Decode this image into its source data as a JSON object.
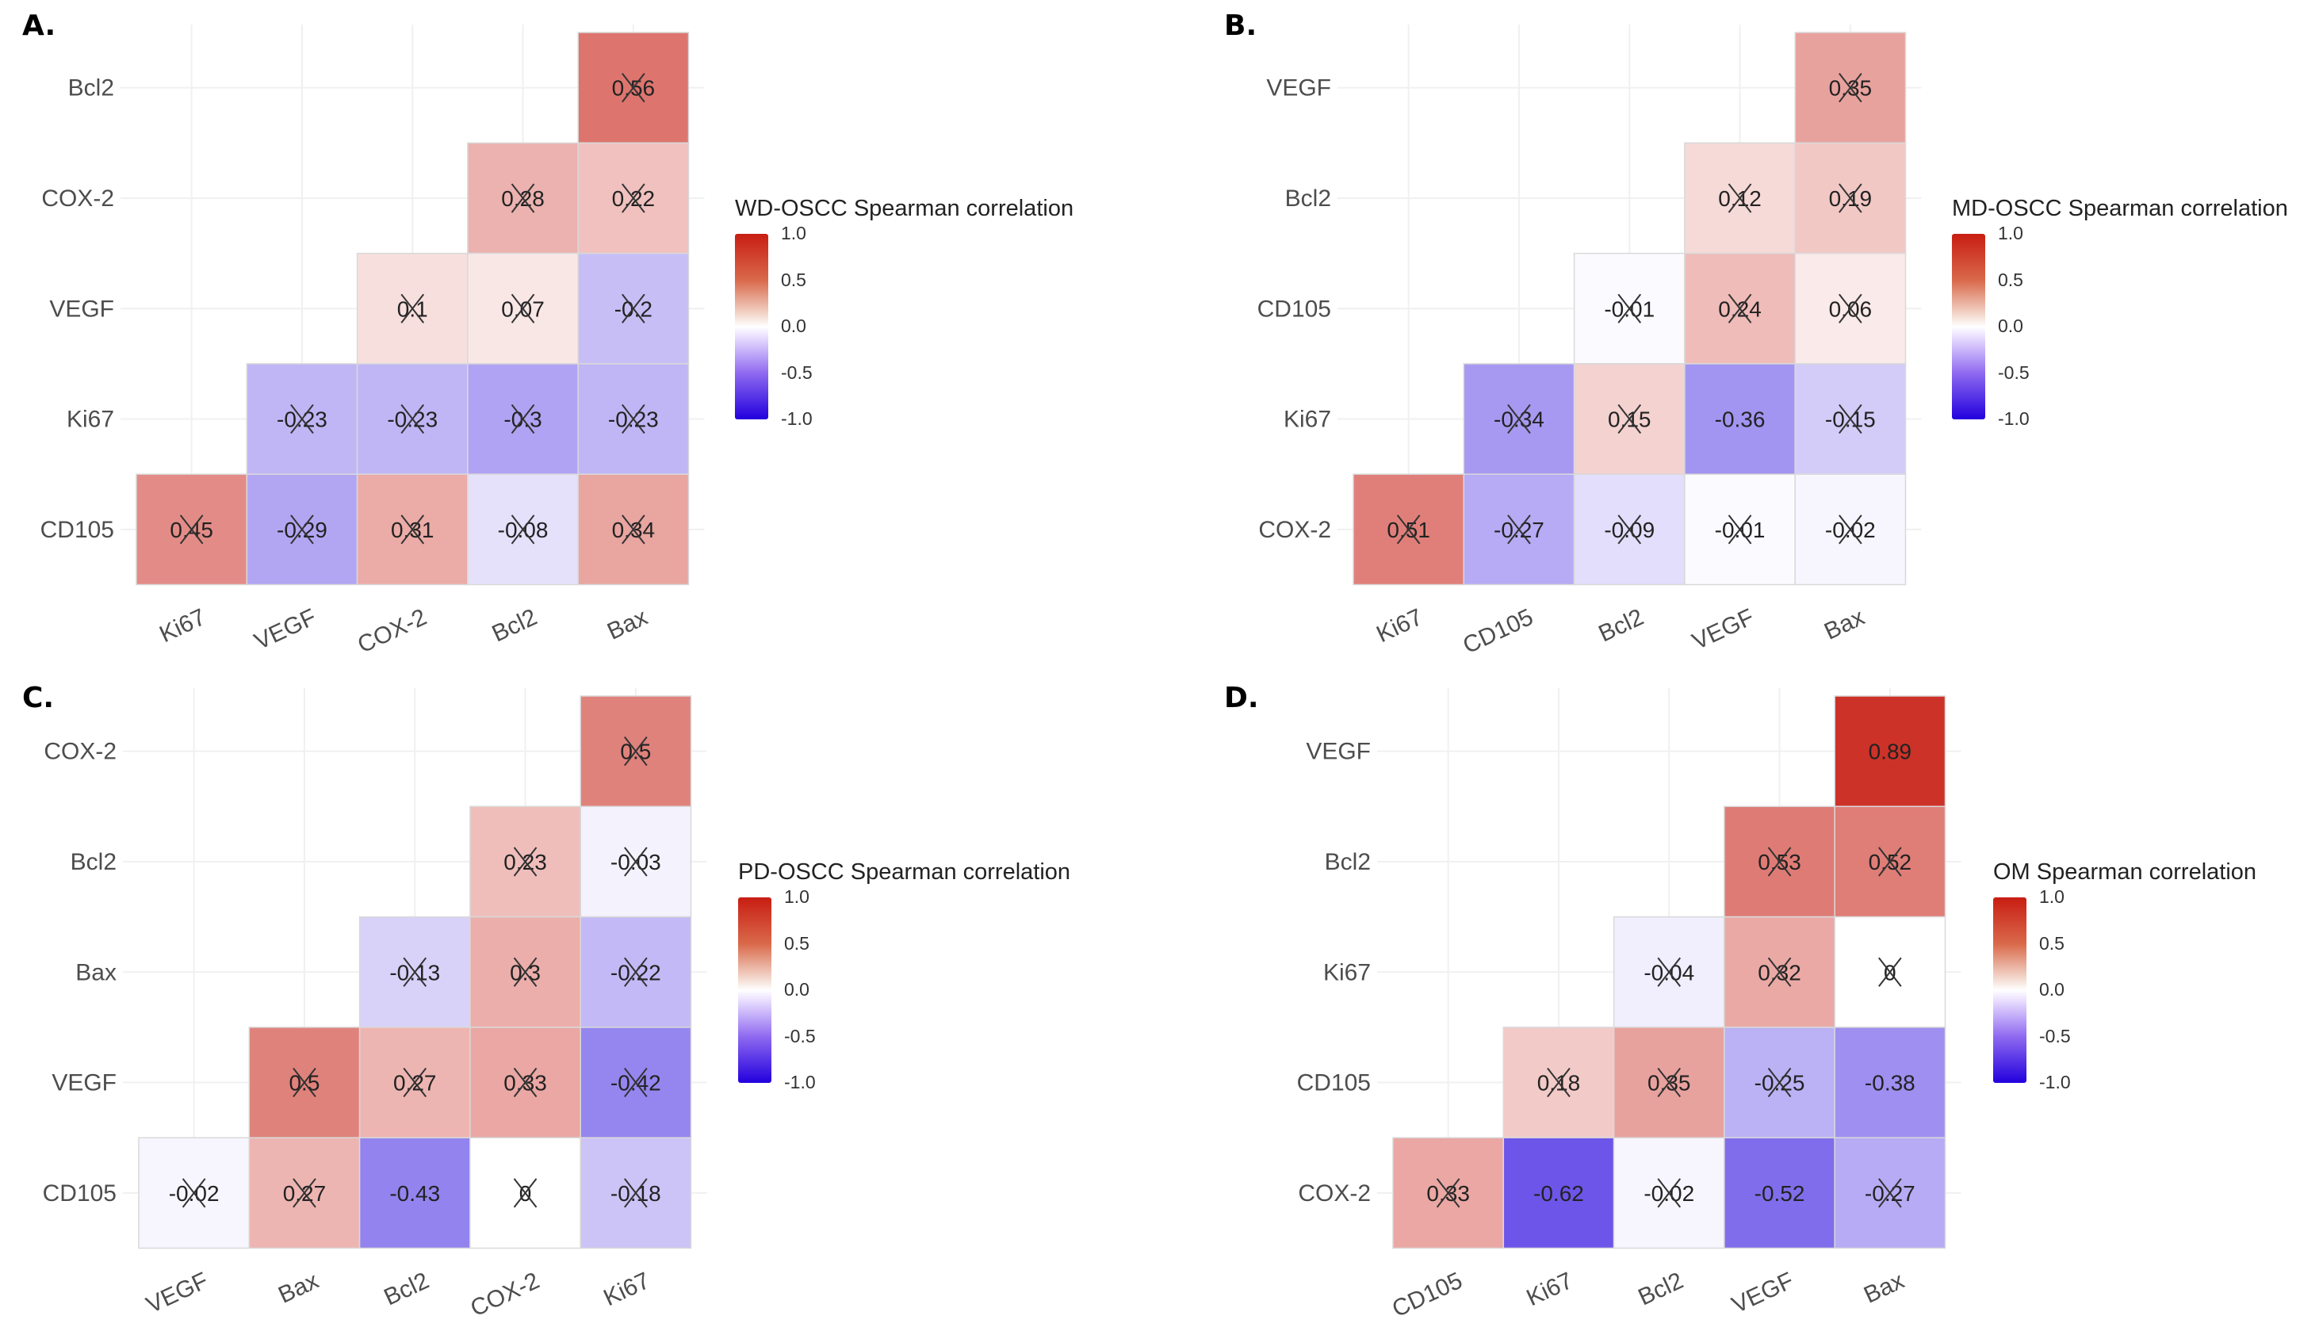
{
  "chart_data": [
    {
      "type": "heatmap",
      "panel": "A.",
      "title": "WD-OSCC Spearman correlation",
      "rows": [
        "Bcl2",
        "COX-2",
        "VEGF",
        "Ki67",
        "CD105"
      ],
      "columns": [
        "Ki67",
        "VEGF",
        "COX-2",
        "Bcl2",
        "Bax"
      ],
      "cells": [
        {
          "row": "Bcl2",
          "col": "Bax",
          "value": 0.56,
          "label": "0.56",
          "crossed": true
        },
        {
          "row": "COX-2",
          "col": "Bcl2",
          "value": 0.28,
          "label": "0.28",
          "crossed": true
        },
        {
          "row": "COX-2",
          "col": "Bax",
          "value": 0.22,
          "label": "0.22",
          "crossed": true
        },
        {
          "row": "VEGF",
          "col": "COX-2",
          "value": 0.1,
          "label": "0.1",
          "crossed": true
        },
        {
          "row": "VEGF",
          "col": "Bcl2",
          "value": 0.07,
          "label": "0.07",
          "crossed": true
        },
        {
          "row": "VEGF",
          "col": "Bax",
          "value": -0.2,
          "label": "-0.2",
          "crossed": true
        },
        {
          "row": "Ki67",
          "col": "VEGF",
          "value": -0.23,
          "label": "-0.23",
          "crossed": true
        },
        {
          "row": "Ki67",
          "col": "COX-2",
          "value": -0.23,
          "label": "-0.23",
          "crossed": true
        },
        {
          "row": "Ki67",
          "col": "Bcl2",
          "value": -0.3,
          "label": "-0.3",
          "crossed": true
        },
        {
          "row": "Ki67",
          "col": "Bax",
          "value": -0.23,
          "label": "-0.23",
          "crossed": true
        },
        {
          "row": "CD105",
          "col": "Ki67",
          "value": 0.45,
          "label": "0.45",
          "crossed": true
        },
        {
          "row": "CD105",
          "col": "VEGF",
          "value": -0.29,
          "label": "-0.29",
          "crossed": true
        },
        {
          "row": "CD105",
          "col": "COX-2",
          "value": 0.31,
          "label": "0.31",
          "crossed": true
        },
        {
          "row": "CD105",
          "col": "Bcl2",
          "value": -0.08,
          "label": "-0.08",
          "crossed": true
        },
        {
          "row": "CD105",
          "col": "Bax",
          "value": 0.34,
          "label": "0.34",
          "crossed": true
        }
      ],
      "legend": {
        "ticks": [
          "1.0",
          "0.5",
          "0.0",
          "-0.5",
          "-1.0"
        ],
        "range": [
          -1,
          1
        ],
        "placement": "right"
      },
      "colors": {
        "low": "#2200dd",
        "mid": "#ffffff",
        "high": "#c81d12"
      }
    },
    {
      "type": "heatmap",
      "panel": "B.",
      "title": "MD-OSCC Spearman correlation",
      "rows": [
        "VEGF",
        "Bcl2",
        "CD105",
        "Ki67",
        "COX-2"
      ],
      "columns": [
        "Ki67",
        "CD105",
        "Bcl2",
        "VEGF",
        "Bax"
      ],
      "cells": [
        {
          "row": "VEGF",
          "col": "Bax",
          "value": 0.35,
          "label": "0.35",
          "crossed": true
        },
        {
          "row": "Bcl2",
          "col": "VEGF",
          "value": 0.12,
          "label": "0.12",
          "crossed": true
        },
        {
          "row": "Bcl2",
          "col": "Bax",
          "value": 0.19,
          "label": "0.19",
          "crossed": true
        },
        {
          "row": "CD105",
          "col": "Bcl2",
          "value": -0.01,
          "label": "-0.01",
          "crossed": true
        },
        {
          "row": "CD105",
          "col": "VEGF",
          "value": 0.24,
          "label": "0.24",
          "crossed": true
        },
        {
          "row": "CD105",
          "col": "Bax",
          "value": 0.06,
          "label": "0.06",
          "crossed": true
        },
        {
          "row": "Ki67",
          "col": "CD105",
          "value": -0.34,
          "label": "-0.34",
          "crossed": true
        },
        {
          "row": "Ki67",
          "col": "Bcl2",
          "value": 0.15,
          "label": "0.15",
          "crossed": true
        },
        {
          "row": "Ki67",
          "col": "VEGF",
          "value": -0.36,
          "label": "-0.36",
          "crossed": false
        },
        {
          "row": "Ki67",
          "col": "Bax",
          "value": -0.15,
          "label": "-0.15",
          "crossed": true
        },
        {
          "row": "COX-2",
          "col": "Ki67",
          "value": 0.51,
          "label": "0.51",
          "crossed": true
        },
        {
          "row": "COX-2",
          "col": "CD105",
          "value": -0.27,
          "label": "-0.27",
          "crossed": true
        },
        {
          "row": "COX-2",
          "col": "Bcl2",
          "value": -0.09,
          "label": "-0.09",
          "crossed": true
        },
        {
          "row": "COX-2",
          "col": "VEGF",
          "value": -0.01,
          "label": "-0.01",
          "crossed": true
        },
        {
          "row": "COX-2",
          "col": "Bax",
          "value": -0.02,
          "label": "-0.02",
          "crossed": true
        }
      ],
      "legend": {
        "ticks": [
          "1.0",
          "0.5",
          "0.0",
          "-0.5",
          "-1.0"
        ],
        "range": [
          -1,
          1
        ],
        "placement": "right"
      },
      "colors": {
        "low": "#2200dd",
        "mid": "#ffffff",
        "high": "#c81d12"
      }
    },
    {
      "type": "heatmap",
      "panel": "C.",
      "title": "PD-OSCC Spearman correlation",
      "rows": [
        "COX-2",
        "Bcl2",
        "Bax",
        "VEGF",
        "CD105"
      ],
      "columns": [
        "VEGF",
        "Bax",
        "Bcl2",
        "COX-2",
        "Ki67"
      ],
      "cells": [
        {
          "row": "COX-2",
          "col": "Ki67",
          "value": 0.5,
          "label": "0.5",
          "crossed": true
        },
        {
          "row": "Bcl2",
          "col": "COX-2",
          "value": 0.23,
          "label": "0.23",
          "crossed": true
        },
        {
          "row": "Bcl2",
          "col": "Ki67",
          "value": -0.03,
          "label": "-0.03",
          "crossed": true
        },
        {
          "row": "Bax",
          "col": "Bcl2",
          "value": -0.13,
          "label": "-0.13",
          "crossed": true
        },
        {
          "row": "Bax",
          "col": "COX-2",
          "value": 0.3,
          "label": "0.3",
          "crossed": true
        },
        {
          "row": "Bax",
          "col": "Ki67",
          "value": -0.22,
          "label": "-0.22",
          "crossed": true
        },
        {
          "row": "VEGF",
          "col": "Bax",
          "value": 0.5,
          "label": "0.5",
          "crossed": true
        },
        {
          "row": "VEGF",
          "col": "Bcl2",
          "value": 0.27,
          "label": "0.27",
          "crossed": true
        },
        {
          "row": "VEGF",
          "col": "COX-2",
          "value": 0.33,
          "label": "0.33",
          "crossed": true
        },
        {
          "row": "VEGF",
          "col": "Ki67",
          "value": -0.42,
          "label": "-0.42",
          "crossed": true
        },
        {
          "row": "CD105",
          "col": "VEGF",
          "value": -0.02,
          "label": "-0.02",
          "crossed": true
        },
        {
          "row": "CD105",
          "col": "Bax",
          "value": 0.27,
          "label": "0.27",
          "crossed": true
        },
        {
          "row": "CD105",
          "col": "Bcl2",
          "value": -0.43,
          "label": "-0.43",
          "crossed": false
        },
        {
          "row": "CD105",
          "col": "COX-2",
          "value": 0,
          "label": "0",
          "crossed": true
        },
        {
          "row": "CD105",
          "col": "Ki67",
          "value": -0.18,
          "label": "-0.18",
          "crossed": true
        }
      ],
      "legend": {
        "ticks": [
          "1.0",
          "0.5",
          "0.0",
          "-0.5",
          "-1.0"
        ],
        "range": [
          -1,
          1
        ],
        "placement": "right"
      },
      "colors": {
        "low": "#2200dd",
        "mid": "#ffffff",
        "high": "#c81d12"
      }
    },
    {
      "type": "heatmap",
      "panel": "D.",
      "title": "OM Spearman correlation",
      "rows": [
        "VEGF",
        "Bcl2",
        "Ki67",
        "CD105",
        "COX-2"
      ],
      "columns": [
        "CD105",
        "Ki67",
        "Bcl2",
        "VEGF",
        "Bax"
      ],
      "cells": [
        {
          "row": "VEGF",
          "col": "Bax",
          "value": 0.89,
          "label": "0.89",
          "crossed": false
        },
        {
          "row": "Bcl2",
          "col": "VEGF",
          "value": 0.53,
          "label": "0.53",
          "crossed": true
        },
        {
          "row": "Bcl2",
          "col": "Bax",
          "value": 0.52,
          "label": "0.52",
          "crossed": true
        },
        {
          "row": "Ki67",
          "col": "Bcl2",
          "value": -0.04,
          "label": "-0.04",
          "crossed": true
        },
        {
          "row": "Ki67",
          "col": "VEGF",
          "value": 0.32,
          "label": "0.32",
          "crossed": true
        },
        {
          "row": "Ki67",
          "col": "Bax",
          "value": 0,
          "label": "0",
          "crossed": true
        },
        {
          "row": "CD105",
          "col": "Ki67",
          "value": 0.18,
          "label": "0.18",
          "crossed": true
        },
        {
          "row": "CD105",
          "col": "Bcl2",
          "value": 0.35,
          "label": "0.35",
          "crossed": true
        },
        {
          "row": "CD105",
          "col": "VEGF",
          "value": -0.25,
          "label": "-0.25",
          "crossed": true
        },
        {
          "row": "CD105",
          "col": "Bax",
          "value": -0.38,
          "label": "-0.38",
          "crossed": false
        },
        {
          "row": "COX-2",
          "col": "CD105",
          "value": 0.33,
          "label": "0.33",
          "crossed": true
        },
        {
          "row": "COX-2",
          "col": "Ki67",
          "value": -0.62,
          "label": "-0.62",
          "crossed": false
        },
        {
          "row": "COX-2",
          "col": "Bcl2",
          "value": -0.02,
          "label": "-0.02",
          "crossed": true
        },
        {
          "row": "COX-2",
          "col": "VEGF",
          "value": -0.52,
          "label": "-0.52",
          "crossed": false
        },
        {
          "row": "COX-2",
          "col": "Bax",
          "value": -0.27,
          "label": "-0.27",
          "crossed": true
        }
      ],
      "legend": {
        "ticks": [
          "1.0",
          "0.5",
          "0.0",
          "-0.5",
          "-1.0"
        ],
        "range": [
          -1,
          1
        ],
        "placement": "right"
      },
      "colors": {
        "low": "#2200dd",
        "mid": "#ffffff",
        "high": "#c81d12"
      }
    }
  ]
}
